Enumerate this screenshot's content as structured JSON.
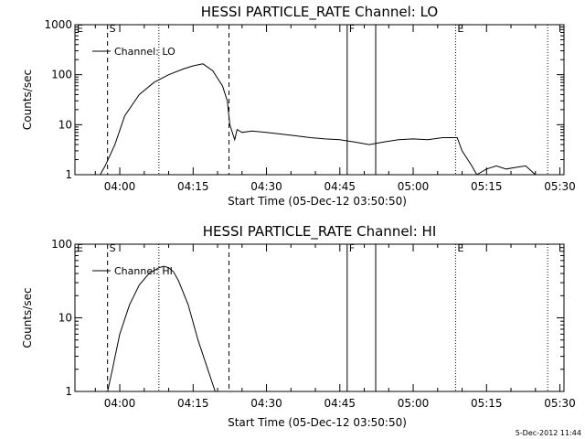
{
  "chart_data": [
    {
      "type": "line",
      "title": "HESSI PARTICLE_RATE Channel: LO",
      "xlabel": "Start Time (05-Dec-12 03:50:50)",
      "ylabel": "Counts/sec",
      "yscale": "log",
      "ylim": [
        1,
        1000
      ],
      "xlim": [
        "03:50:50",
        "05:30:50"
      ],
      "ytick_labels": [
        "1",
        "10",
        "100",
        "1000"
      ],
      "ytick_values": [
        1,
        10,
        100,
        1000
      ],
      "xtick_labels": [
        "04:00",
        "04:15",
        "04:30",
        "04:45",
        "05:00",
        "05:15",
        "05:30"
      ],
      "legend": "top-left",
      "series": [
        {
          "name": "Channel: LO",
          "x": [
            "03:50:50",
            "03:52:00",
            "03:53:00",
            "03:54:00",
            "03:56:00",
            "03:57:00",
            "03:59:00",
            "04:01:00",
            "04:04:00",
            "04:07:00",
            "04:10:00",
            "04:13:00",
            "04:15:00",
            "04:17:00",
            "04:19:00",
            "04:21:00",
            "04:22:00",
            "04:22:30",
            "04:23:30",
            "04:24:00",
            "04:25:00",
            "04:27:00",
            "04:30:00",
            "04:33:00",
            "04:36:00",
            "04:39:00",
            "04:42:00",
            "04:45:00",
            "04:48:00",
            "04:51:00",
            "04:54:00",
            "04:57:00",
            "05:00:00",
            "05:03:00",
            "05:06:00",
            "05:09:00",
            "05:10:00",
            "05:12:00",
            "05:13:00",
            "05:15:00",
            "05:17:00",
            "05:19:00",
            "05:21:00",
            "05:23:00",
            "05:25:00",
            "05:26:00"
          ],
          "y": [
            1,
            1,
            1,
            1,
            1,
            1.5,
            4,
            15,
            40,
            70,
            100,
            130,
            150,
            165,
            120,
            60,
            30,
            10,
            5,
            8,
            7,
            7.5,
            7,
            6.5,
            6,
            5.5,
            5.2,
            5,
            4.5,
            4,
            4.5,
            5,
            5.2,
            5,
            5.5,
            5.5,
            3,
            1.5,
            1,
            1.3,
            1.5,
            1.3,
            1.4,
            1.5,
            1,
            1
          ]
        }
      ],
      "markers": [
        {
          "label": "E",
          "time": "03:50:50",
          "style": "solid"
        },
        {
          "label": "S",
          "time": "03:57:30",
          "style": "dashed"
        },
        {
          "label": "",
          "time": "04:08:00",
          "style": "dotted"
        },
        {
          "label": "",
          "time": "04:22:20",
          "style": "dashed"
        },
        {
          "label": "F",
          "time": "04:46:30",
          "style": "solid"
        },
        {
          "label": "",
          "time": "04:52:20",
          "style": "solid"
        },
        {
          "label": "E",
          "time": "05:08:40",
          "style": "dotted"
        },
        {
          "label": "",
          "time": "05:27:30",
          "style": "dotted"
        }
      ]
    },
    {
      "type": "line",
      "title": "HESSI PARTICLE_RATE Channel: HI",
      "xlabel": "Start Time (05-Dec-12 03:50:50)",
      "ylabel": "Counts/sec",
      "yscale": "log",
      "ylim": [
        1,
        100
      ],
      "xlim": [
        "03:50:50",
        "05:30:50"
      ],
      "ytick_labels": [
        "1",
        "10",
        "100"
      ],
      "ytick_values": [
        1,
        10,
        100
      ],
      "xtick_labels": [
        "04:00",
        "04:15",
        "04:30",
        "04:45",
        "05:00",
        "05:15",
        "05:30"
      ],
      "legend": "top-left",
      "series": [
        {
          "name": "Channel: HI",
          "x": [
            "03:57:30",
            "03:58:30",
            "04:00:00",
            "04:02:00",
            "04:04:00",
            "04:06:00",
            "04:08:00",
            "04:09:00",
            "04:10:00",
            "04:11:00",
            "04:12:00",
            "04:14:00",
            "04:16:00",
            "04:18:00",
            "04:19:30"
          ],
          "y": [
            1,
            2,
            6,
            15,
            28,
            40,
            48,
            50,
            48,
            42,
            32,
            15,
            5,
            2,
            1
          ]
        }
      ],
      "markers": [
        {
          "label": "E",
          "time": "03:50:50",
          "style": "solid"
        },
        {
          "label": "S",
          "time": "03:57:30",
          "style": "dashed"
        },
        {
          "label": "",
          "time": "04:08:00",
          "style": "dotted"
        },
        {
          "label": "",
          "time": "04:22:20",
          "style": "dashed"
        },
        {
          "label": "F",
          "time": "04:46:30",
          "style": "solid"
        },
        {
          "label": "",
          "time": "04:52:20",
          "style": "solid"
        },
        {
          "label": "E",
          "time": "05:08:40",
          "style": "dotted"
        },
        {
          "label": "",
          "time": "05:27:30",
          "style": "dotted"
        }
      ]
    }
  ],
  "footer": {
    "timestamp": "5-Dec-2012 11:44"
  }
}
